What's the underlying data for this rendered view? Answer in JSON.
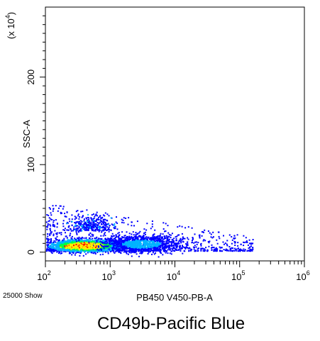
{
  "chart_data": {
    "type": "scatter",
    "plot_style": "pseudocolor density dot plot",
    "xlabel": "PB450 V450-PB-A",
    "ylabel": "SSC-A",
    "y_multiplier_label": "(x 10",
    "y_multiplier_exp": "4",
    "y_multiplier_close": ")",
    "x_scale": "log",
    "xlim": [
      100,
      1000000
    ],
    "x_ticks": [
      {
        "base": "10",
        "exp": "2",
        "value": 100
      },
      {
        "base": "10",
        "exp": "3",
        "value": 1000
      },
      {
        "base": "10",
        "exp": "4",
        "value": 10000
      },
      {
        "base": "10",
        "exp": "5",
        "value": 100000
      },
      {
        "base": "10",
        "exp": "6",
        "value": 1000000
      }
    ],
    "y_scale": "linear",
    "ylim": [
      -10,
      280
    ],
    "y_ticks": [
      {
        "label": "0",
        "value": 0
      },
      {
        "label": "100",
        "value": 100
      },
      {
        "label": "200",
        "value": 200
      }
    ],
    "events_note": "25000 Show",
    "density_colors": [
      "#0000ff",
      "#00b4ff",
      "#00ff40",
      "#ffee00",
      "#ff0000"
    ],
    "populations": [
      {
        "x_center": 400,
        "y_center": 8,
        "x_spread_decades": 0.45,
        "y_spread": 6,
        "peak_density": "red"
      },
      {
        "x_center": 3000,
        "y_center": 10,
        "x_spread_decades": 0.5,
        "y_spread": 8,
        "peak_density": "blue"
      }
    ],
    "x_range_of_events": [
      100,
      200000
    ],
    "y_range_of_events": [
      -5,
      60
    ]
  },
  "caption": "CD49b-Pacific Blue"
}
